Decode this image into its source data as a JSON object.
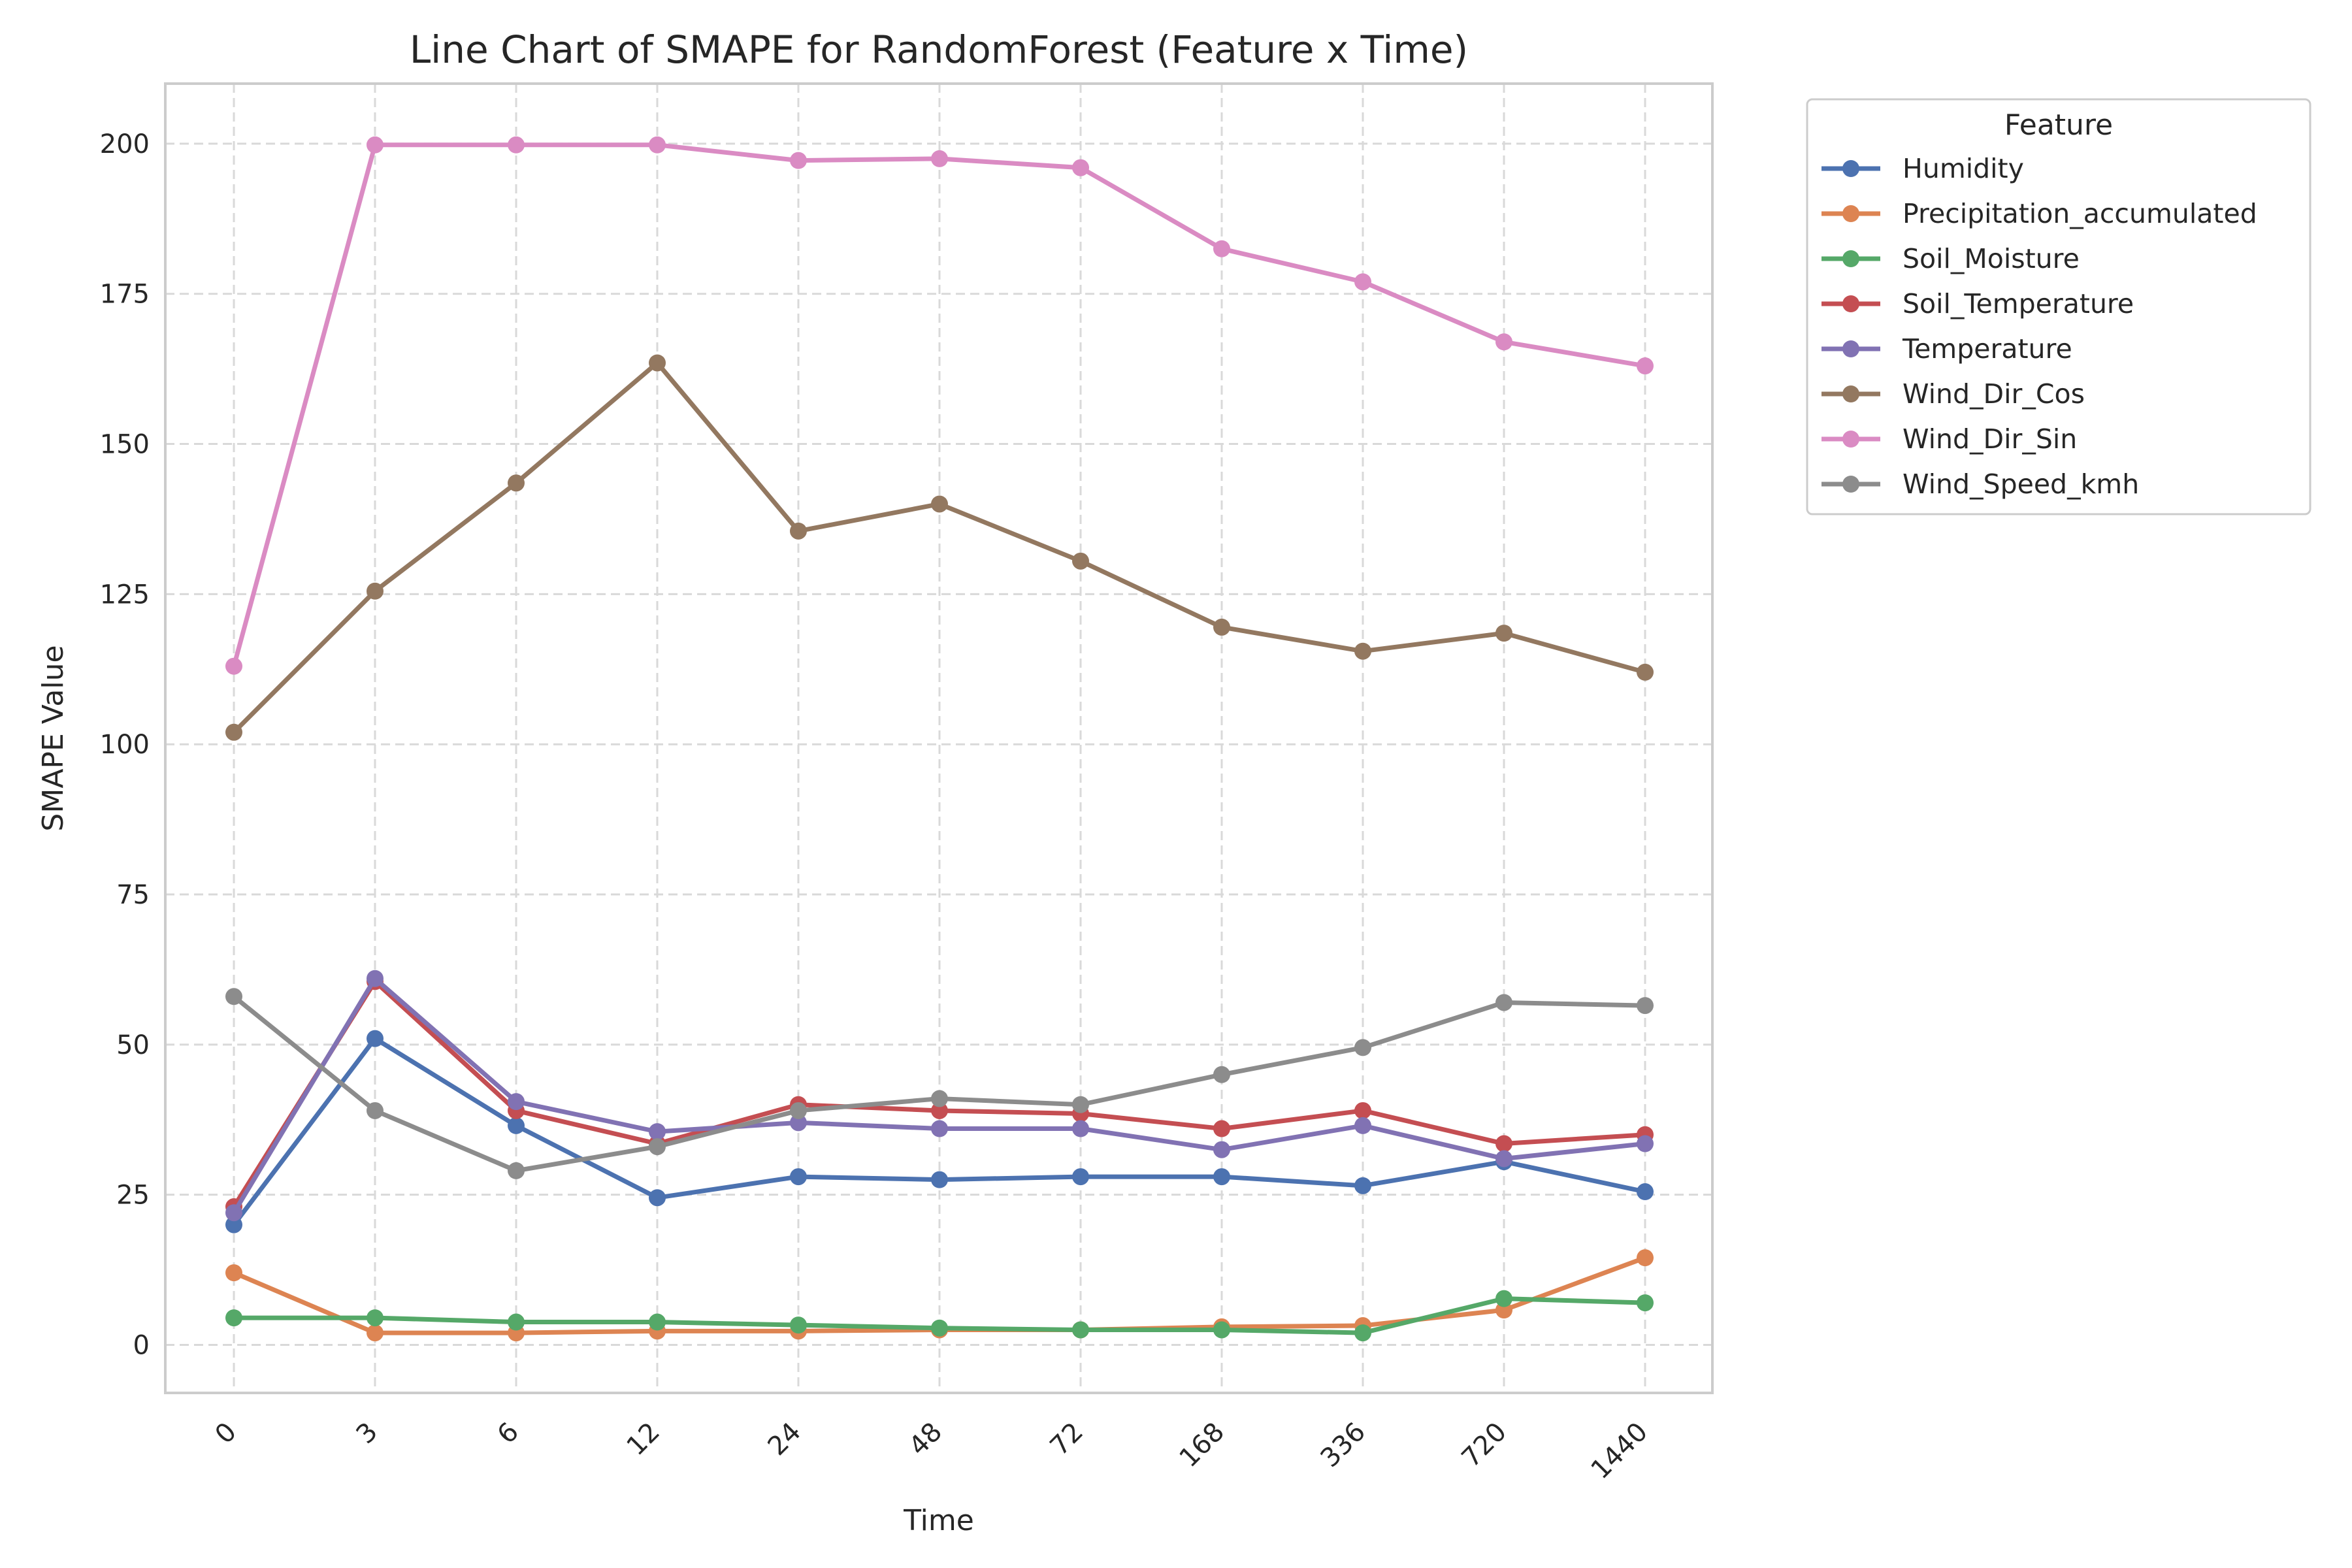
{
  "chart_data": {
    "type": "line",
    "title": "Line Chart of SMAPE for RandomForest (Feature x Time)",
    "xlabel": "Time",
    "ylabel": "SMAPE Value",
    "categories": [
      "0",
      "3",
      "6",
      "12",
      "24",
      "48",
      "72",
      "168",
      "336",
      "720",
      "1440"
    ],
    "ylim": [
      -8,
      210
    ],
    "yticks": [
      0,
      25,
      50,
      75,
      100,
      125,
      150,
      175,
      200
    ],
    "grid": true,
    "legend_title": "Feature",
    "legend_position": "outside-top-right",
    "series": [
      {
        "name": "Humidity",
        "color": "#4c72b0",
        "values": [
          20,
          51,
          36.5,
          24.5,
          28,
          27.5,
          28,
          28,
          26.5,
          30.5,
          25.5
        ]
      },
      {
        "name": "Precipitation_accumulated",
        "color": "#dd8452",
        "values": [
          12,
          2,
          2,
          2.3,
          2.3,
          2.5,
          2.5,
          3,
          3.2,
          5.8,
          14.5
        ]
      },
      {
        "name": "Soil_Moisture",
        "color": "#55a868",
        "values": [
          4.5,
          4.5,
          3.8,
          3.8,
          3.3,
          2.8,
          2.5,
          2.5,
          2,
          7.7,
          7
        ]
      },
      {
        "name": "Soil_Temperature",
        "color": "#c44e52",
        "values": [
          23,
          60.5,
          39,
          33.5,
          40,
          39,
          38.5,
          36,
          39,
          33.5,
          35
        ]
      },
      {
        "name": "Temperature",
        "color": "#8172b3",
        "values": [
          22,
          61,
          40.5,
          35.5,
          37,
          36,
          36,
          32.5,
          36.5,
          31,
          33.5
        ]
      },
      {
        "name": "Wind_Dir_Cos",
        "color": "#937860",
        "values": [
          102,
          125.5,
          143.5,
          163.5,
          135.5,
          140,
          130.5,
          119.5,
          115.5,
          118.5,
          112
        ]
      },
      {
        "name": "Wind_Dir_Sin",
        "color": "#da8bc3",
        "values": [
          113,
          199.8,
          199.8,
          199.8,
          197.2,
          197.5,
          196,
          182.5,
          177,
          167,
          163
        ]
      },
      {
        "name": "Wind_Speed_kmh",
        "color": "#8c8c8c",
        "values": [
          58,
          39,
          29,
          33,
          39,
          41,
          40,
          45,
          49.5,
          57,
          56.5
        ]
      }
    ]
  }
}
